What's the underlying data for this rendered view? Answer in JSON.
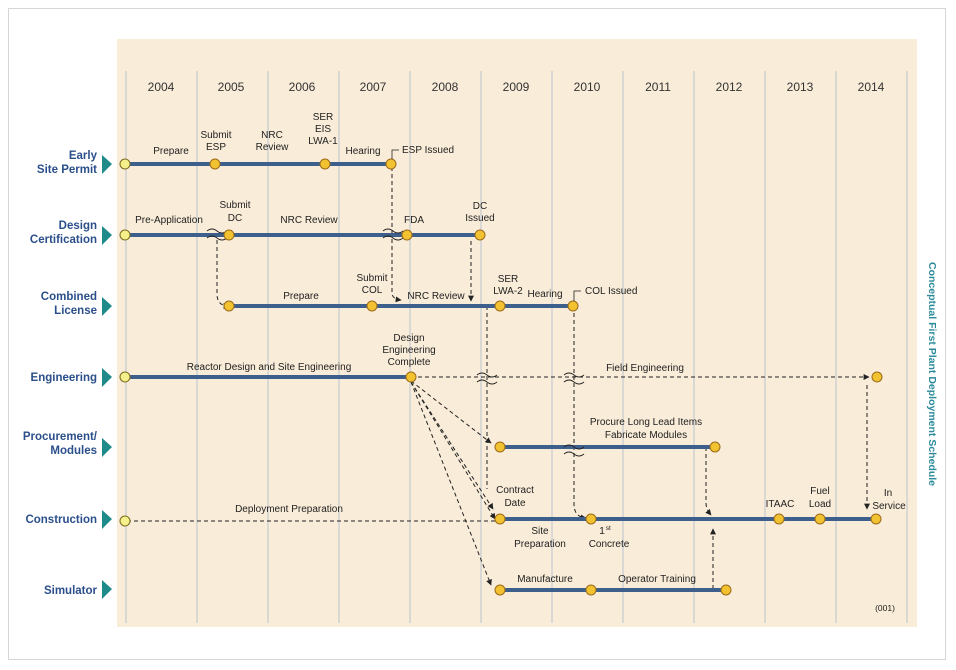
{
  "side_title": "Conceptual First Plant Deployment Schedule",
  "figure_code": "(001)",
  "years": [
    "2004",
    "2005",
    "2006",
    "2007",
    "2008",
    "2009",
    "2010",
    "2011",
    "2012",
    "2013",
    "2014"
  ],
  "rows": [
    {
      "id": "esp",
      "label": [
        "Early",
        "Site Permit"
      ]
    },
    {
      "id": "dc",
      "label": [
        "Design",
        "Certification"
      ]
    },
    {
      "id": "col",
      "label": [
        "Combined",
        "License"
      ]
    },
    {
      "id": "eng",
      "label": [
        "Engineering"
      ]
    },
    {
      "id": "proc",
      "label": [
        "Procurement/",
        "Modules"
      ]
    },
    {
      "id": "con",
      "label": [
        "Construction"
      ]
    },
    {
      "id": "sim",
      "label": [
        "Simulator"
      ]
    }
  ],
  "annotations": {
    "esp": {
      "prepare": "Prepare",
      "submit_esp": [
        "Submit",
        "ESP"
      ],
      "nrc_review": [
        "NRC",
        "Review"
      ],
      "ser_eis": [
        "SER",
        "EIS",
        "LWA-1"
      ],
      "hearing": "Hearing",
      "esp_issued": "ESP Issued"
    },
    "dc": {
      "pre_application": "Pre-Application",
      "submit_dc": [
        "Submit",
        "DC"
      ],
      "nrc_review": "NRC Review",
      "fda": "FDA",
      "dc_issued": [
        "DC",
        "Issued"
      ]
    },
    "col": {
      "prepare": "Prepare",
      "submit_col": [
        "Submit",
        "COL"
      ],
      "nrc_review": "NRC Review",
      "ser_lwa2": [
        "SER",
        "LWA-2"
      ],
      "hearing": "Hearing",
      "col_issued": "COL Issued"
    },
    "eng": {
      "reactor_design": "Reactor Design and Site Engineering",
      "design_complete": [
        "Design",
        "Engineering",
        "Complete"
      ],
      "field_engineering": "Field Engineering"
    },
    "proc": {
      "procure": [
        "Procure Long Lead Items",
        "Fabricate Modules"
      ]
    },
    "con": {
      "deployment_prep": "Deployment Preparation",
      "contract_date": [
        "Contract",
        "Date"
      ],
      "site_prep": [
        "Site",
        "Preparation"
      ],
      "first_concrete": [
        "1",
        "st",
        "Concrete"
      ],
      "itaac": "ITAAC",
      "fuel_load": [
        "Fuel",
        "Load"
      ],
      "in_service": [
        "In",
        "Service"
      ]
    },
    "sim": {
      "manufacture": "Manufacture",
      "operator_training": "Operator Training"
    }
  },
  "colors": {
    "band": "#f9ecd8",
    "bar": "#3d5f8c",
    "milestone_fill": "#f3c230",
    "milestone_stroke": "#9a6a1a",
    "start_fill": "#f4f08a",
    "arrowhead": "#1f8a8a",
    "row_label": "#2b4f8a",
    "side_title": "#2a8a99"
  }
}
